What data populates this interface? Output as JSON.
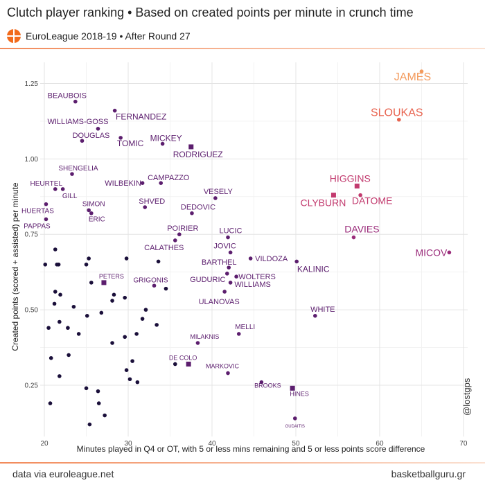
{
  "header": {
    "title": "Clutch player ranking • Based on created points per minute in crunch time",
    "subtitle": "EuroLeague 2018-19 • After Round 27"
  },
  "footer": {
    "source": "data via euroleague.net",
    "site": "basketballguru.gr",
    "handle": "@lostgps"
  },
  "colors": {
    "dark": "#1a0f3a",
    "mid": "#5c1e6e",
    "magenta": "#9a2b7a",
    "pink": "#c23a6e",
    "salmon": "#e8634f",
    "orange": "#f39a5c"
  },
  "chart_data": {
    "type": "scatter",
    "xlabel": "Minutes played in Q4 or OT, with 5 or less mins remaining and 5 or less points score difference",
    "ylabel": "Created points (scored + assisted) per minute",
    "xlim": [
      19.5,
      70.5
    ],
    "ylim": [
      0.08,
      1.32
    ],
    "xticks": [
      20,
      30,
      40,
      50,
      60,
      70
    ],
    "yticks": [
      0.25,
      0.5,
      0.75,
      1.0,
      1.25
    ],
    "xtick_labels": [
      "20",
      "30",
      "40",
      "50",
      "60",
      "70"
    ],
    "ytick_labels": [
      "0.25",
      "0.50",
      "0.75",
      "1.00",
      "1.25"
    ],
    "grid": true,
    "points": [
      {
        "x": 65.0,
        "y": 1.29,
        "label": "JAMES",
        "shape": "circle"
      },
      {
        "x": 62.3,
        "y": 1.13,
        "label": "SLOUKAS",
        "shape": "circle"
      },
      {
        "x": 57.3,
        "y": 0.91,
        "label": "HIGGINS",
        "shape": "square"
      },
      {
        "x": 54.5,
        "y": 0.88,
        "label": "CLYBURN",
        "shape": "square"
      },
      {
        "x": 57.7,
        "y": 0.88,
        "label": "DATOME",
        "shape": "circle"
      },
      {
        "x": 56.9,
        "y": 0.74,
        "label": "DAVIES",
        "shape": "circle"
      },
      {
        "x": 68.3,
        "y": 0.69,
        "label": "MICOV",
        "shape": "circle"
      },
      {
        "x": 52.3,
        "y": 0.48,
        "label": "WHITE",
        "shape": "circle"
      },
      {
        "x": 50.1,
        "y": 0.66,
        "label": "KALINIC",
        "shape": "circle"
      },
      {
        "x": 23.7,
        "y": 1.19,
        "label": "BEAUBOIS",
        "shape": "circle"
      },
      {
        "x": 28.4,
        "y": 1.16,
        "label": "FERNANDEZ",
        "shape": "circle"
      },
      {
        "x": 26.4,
        "y": 1.1,
        "label": "WILLIAMS-GOSS",
        "shape": "circle"
      },
      {
        "x": 24.5,
        "y": 1.06,
        "label": "DOUGLAS",
        "shape": "circle"
      },
      {
        "x": 29.1,
        "y": 1.07,
        "label": "TOMIC",
        "shape": "circle"
      },
      {
        "x": 34.1,
        "y": 1.05,
        "label": "MICKEY",
        "shape": "circle"
      },
      {
        "x": 37.5,
        "y": 1.04,
        "label": "RODRIGUEZ",
        "shape": "square"
      },
      {
        "x": 23.3,
        "y": 0.95,
        "label": "SHENGELIA",
        "shape": "circle"
      },
      {
        "x": 21.3,
        "y": 0.9,
        "label": "HEURTEL",
        "shape": "circle"
      },
      {
        "x": 22.2,
        "y": 0.9,
        "label": "GILL",
        "shape": "circle"
      },
      {
        "x": 20.2,
        "y": 0.85,
        "label": "HUERTAS",
        "shape": "circle"
      },
      {
        "x": 20.2,
        "y": 0.8,
        "label": "PAPPAS",
        "shape": "circle"
      },
      {
        "x": 25.3,
        "y": 0.83,
        "label": "SIMON",
        "shape": "circle"
      },
      {
        "x": 25.6,
        "y": 0.82,
        "label": "ERIC",
        "shape": "circle"
      },
      {
        "x": 31.7,
        "y": 0.92,
        "label": "WILBEKIN",
        "shape": "circle"
      },
      {
        "x": 33.9,
        "y": 0.92,
        "label": "CAMPAZZO",
        "shape": "circle"
      },
      {
        "x": 32.0,
        "y": 0.84,
        "label": "SHVED",
        "shape": "circle"
      },
      {
        "x": 40.4,
        "y": 0.87,
        "label": "VESELY",
        "shape": "circle"
      },
      {
        "x": 37.6,
        "y": 0.82,
        "label": "DEDOVIC",
        "shape": "circle"
      },
      {
        "x": 36.1,
        "y": 0.75,
        "label": "POIRIER",
        "shape": "circle"
      },
      {
        "x": 35.6,
        "y": 0.73,
        "label": "CALATHES",
        "shape": "circle"
      },
      {
        "x": 41.9,
        "y": 0.74,
        "label": "LUCIC",
        "shape": "circle"
      },
      {
        "x": 42.2,
        "y": 0.69,
        "label": "JOVIC",
        "shape": "circle"
      },
      {
        "x": 42.0,
        "y": 0.64,
        "label": "BARTHEL",
        "shape": "circle"
      },
      {
        "x": 44.6,
        "y": 0.67,
        "label": "VILDOZA",
        "shape": "circle"
      },
      {
        "x": 41.8,
        "y": 0.62,
        "label": "GUDURIC",
        "shape": "circle"
      },
      {
        "x": 42.9,
        "y": 0.61,
        "label": "WOLTERS",
        "shape": "circle"
      },
      {
        "x": 42.2,
        "y": 0.59,
        "label": "WILLIAMS",
        "shape": "circle"
      },
      {
        "x": 41.5,
        "y": 0.56,
        "label": "ULANOVAS",
        "shape": "circle"
      },
      {
        "x": 27.1,
        "y": 0.59,
        "label": "PETERS",
        "shape": "square"
      },
      {
        "x": 33.1,
        "y": 0.58,
        "label": "GRIGONIS",
        "shape": "circle"
      },
      {
        "x": 43.2,
        "y": 0.42,
        "label": "MELLI",
        "shape": "circle"
      },
      {
        "x": 38.3,
        "y": 0.39,
        "label": "MILAKNIS",
        "shape": "circle"
      },
      {
        "x": 37.2,
        "y": 0.32,
        "label": "DE COLO",
        "shape": "square"
      },
      {
        "x": 41.9,
        "y": 0.29,
        "label": "MARKOVIC",
        "shape": "circle"
      },
      {
        "x": 45.9,
        "y": 0.26,
        "label": "BROOKS",
        "shape": "circle"
      },
      {
        "x": 49.6,
        "y": 0.24,
        "label": "HINES",
        "shape": "square"
      },
      {
        "x": 49.9,
        "y": 0.14,
        "label": "GUDAITIS",
        "shape": "circle"
      },
      {
        "x": 21.3,
        "y": 0.7
      },
      {
        "x": 20.1,
        "y": 0.65
      },
      {
        "x": 21.7,
        "y": 0.65
      },
      {
        "x": 21.5,
        "y": 0.65
      },
      {
        "x": 25.0,
        "y": 0.65
      },
      {
        "x": 25.3,
        "y": 0.67
      },
      {
        "x": 29.8,
        "y": 0.67
      },
      {
        "x": 33.6,
        "y": 0.66
      },
      {
        "x": 25.6,
        "y": 0.59
      },
      {
        "x": 34.5,
        "y": 0.57
      },
      {
        "x": 21.3,
        "y": 0.56
      },
      {
        "x": 21.9,
        "y": 0.55
      },
      {
        "x": 28.3,
        "y": 0.55
      },
      {
        "x": 29.6,
        "y": 0.54
      },
      {
        "x": 21.2,
        "y": 0.52
      },
      {
        "x": 23.5,
        "y": 0.51
      },
      {
        "x": 28.1,
        "y": 0.53
      },
      {
        "x": 32.1,
        "y": 0.5
      },
      {
        "x": 26.8,
        "y": 0.49
      },
      {
        "x": 25.1,
        "y": 0.48
      },
      {
        "x": 31.7,
        "y": 0.47
      },
      {
        "x": 21.8,
        "y": 0.46
      },
      {
        "x": 20.5,
        "y": 0.44
      },
      {
        "x": 22.8,
        "y": 0.44
      },
      {
        "x": 33.4,
        "y": 0.45
      },
      {
        "x": 24.1,
        "y": 0.42
      },
      {
        "x": 31.0,
        "y": 0.42
      },
      {
        "x": 29.6,
        "y": 0.41
      },
      {
        "x": 28.1,
        "y": 0.39
      },
      {
        "x": 22.9,
        "y": 0.35
      },
      {
        "x": 20.8,
        "y": 0.34
      },
      {
        "x": 30.5,
        "y": 0.33
      },
      {
        "x": 29.8,
        "y": 0.3
      },
      {
        "x": 21.8,
        "y": 0.28
      },
      {
        "x": 30.2,
        "y": 0.27
      },
      {
        "x": 31.1,
        "y": 0.26
      },
      {
        "x": 35.6,
        "y": 0.32
      },
      {
        "x": 25.0,
        "y": 0.24
      },
      {
        "x": 26.4,
        "y": 0.23
      },
      {
        "x": 20.7,
        "y": 0.19
      },
      {
        "x": 26.5,
        "y": 0.19
      },
      {
        "x": 27.2,
        "y": 0.15
      },
      {
        "x": 25.4,
        "y": 0.12
      }
    ]
  }
}
